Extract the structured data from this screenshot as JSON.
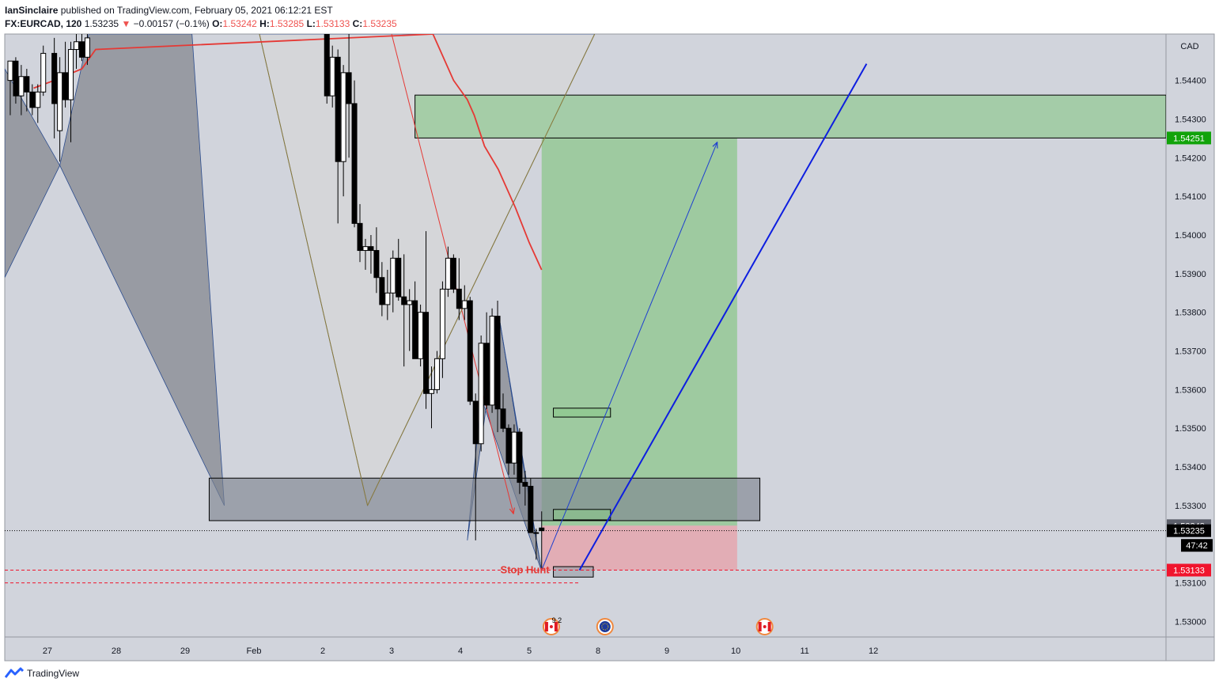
{
  "header": {
    "author": "IanSinclaire",
    "published_text": "published on TradingView.com, February 05, 2021 06:12:21 EST",
    "symbol": "FX:EURCAD, 120",
    "last": "1.53235",
    "change_arrow": "▼",
    "change": "−0.00157 (−0.1%)",
    "o_label": "O:",
    "o_value": "1.53242",
    "h_label": "H:",
    "h_value": "1.53285",
    "l_label": "L:",
    "l_value": "1.53133",
    "c_label": "C:",
    "c_value": "1.53235"
  },
  "footer": {
    "brand": "TradingView",
    "logo_icon": "tradingview-logo-icon"
  },
  "colors": {
    "background": "#d1d4dc",
    "bull": "#ffffff",
    "bear": "#000000",
    "target_zone": "#8cc78c",
    "stop_zone": "#f08c96",
    "ema": "#e53935",
    "trend_line": "#0d1ee0",
    "price_tag_green": "#11a30a",
    "price_tag_red": "#f0142d"
  },
  "chart_data": {
    "type": "candlestick",
    "symbol": "EURCAD",
    "interval": "120",
    "currency_label": "CAD",
    "ylim": [
      1.5296,
      1.5452
    ],
    "xlim": [
      26.38,
      43.25
    ],
    "x_ticks": [
      {
        "label": "27",
        "x": 27
      },
      {
        "label": "28",
        "x": 28
      },
      {
        "label": "29",
        "x": 29
      },
      {
        "label": "Feb",
        "x": 30
      },
      {
        "label": "2",
        "x": 31
      },
      {
        "label": "3",
        "x": 32
      },
      {
        "label": "4",
        "x": 33
      },
      {
        "label": "5",
        "x": 34
      },
      {
        "label": "8",
        "x": 35
      },
      {
        "label": "9",
        "x": 36
      },
      {
        "label": "10",
        "x": 37
      },
      {
        "label": "11",
        "x": 38
      },
      {
        "label": "12",
        "x": 39
      }
    ],
    "y_ticks": [
      "1.54400",
      "1.54300",
      "1.54200",
      "1.54100",
      "1.54000",
      "1.53900",
      "1.53800",
      "1.53700",
      "1.53600",
      "1.53500",
      "1.53400",
      "1.53300",
      "1.53100",
      "1.53000"
    ],
    "price_tags": [
      {
        "label": "1.54251",
        "price": 1.54251,
        "style": "green"
      },
      {
        "label": "1.53248",
        "price": 1.53248,
        "style": "grey"
      },
      {
        "label": "1.53235",
        "price": 1.53235,
        "style": "black"
      },
      {
        "label": "47:42",
        "price": 1.53197,
        "style": "black"
      },
      {
        "label": "1.53133",
        "price": 1.53133,
        "style": "red"
      }
    ],
    "annotation": "Stop Hunt",
    "event_marker_text": "9 2",
    "event_icons": [
      "canada-flag-icon",
      "euro-flag-icon",
      "canada-flag-icon"
    ],
    "candles": [
      {
        "x": 26.46,
        "o": 1.544,
        "h": 1.5445,
        "l": 1.5431,
        "c": 1.5445
      },
      {
        "x": 26.54,
        "o": 1.5445,
        "h": 1.5446,
        "l": 1.5434,
        "c": 1.5436
      },
      {
        "x": 26.62,
        "o": 1.5436,
        "h": 1.5444,
        "l": 1.5431,
        "c": 1.5441
      },
      {
        "x": 26.7,
        "o": 1.5441,
        "h": 1.5443,
        "l": 1.5432,
        "c": 1.5437
      },
      {
        "x": 26.78,
        "o": 1.5437,
        "h": 1.5439,
        "l": 1.5431,
        "c": 1.5433
      },
      {
        "x": 26.86,
        "o": 1.5433,
        "h": 1.5439,
        "l": 1.5429,
        "c": 1.5437
      },
      {
        "x": 26.94,
        "o": 1.5437,
        "h": 1.5449,
        "l": 1.5436,
        "c": 1.5447
      },
      {
        "x": 27.1,
        "o": 1.5447,
        "h": 1.5451,
        "l": 1.5425,
        "c": 1.5434
      },
      {
        "x": 27.18,
        "o": 1.5427,
        "h": 1.5446,
        "l": 1.5419,
        "c": 1.5442
      },
      {
        "x": 27.26,
        "o": 1.5442,
        "h": 1.545,
        "l": 1.5433,
        "c": 1.5435
      },
      {
        "x": 27.34,
        "o": 1.5435,
        "h": 1.545,
        "l": 1.5424,
        "c": 1.5448
      },
      {
        "x": 27.42,
        "o": 1.5448,
        "h": 1.5452,
        "l": 1.5443,
        "c": 1.545
      },
      {
        "x": 27.5,
        "o": 1.545,
        "h": 1.5452,
        "l": 1.5445,
        "c": 1.5446
      },
      {
        "x": 27.58,
        "o": 1.5446,
        "h": 1.5452,
        "l": 1.5444,
        "c": 1.5451
      },
      {
        "x": 31.06,
        "o": 1.5452,
        "h": 1.5452,
        "l": 1.5434,
        "c": 1.5436
      },
      {
        "x": 31.14,
        "o": 1.5436,
        "h": 1.5449,
        "l": 1.5433,
        "c": 1.5446
      },
      {
        "x": 31.22,
        "o": 1.5446,
        "h": 1.5448,
        "l": 1.5403,
        "c": 1.5419
      },
      {
        "x": 31.3,
        "o": 1.5419,
        "h": 1.5444,
        "l": 1.541,
        "c": 1.5442
      },
      {
        "x": 31.38,
        "o": 1.5442,
        "h": 1.5452,
        "l": 1.542,
        "c": 1.5434
      },
      {
        "x": 31.46,
        "o": 1.5434,
        "h": 1.544,
        "l": 1.5402,
        "c": 1.5403
      },
      {
        "x": 31.54,
        "o": 1.5403,
        "h": 1.5408,
        "l": 1.5393,
        "c": 1.5396
      },
      {
        "x": 31.62,
        "o": 1.5396,
        "h": 1.5399,
        "l": 1.5391,
        "c": 1.5397
      },
      {
        "x": 31.7,
        "o": 1.5397,
        "h": 1.54,
        "l": 1.539,
        "c": 1.5396
      },
      {
        "x": 31.78,
        "o": 1.5396,
        "h": 1.5402,
        "l": 1.5385,
        "c": 1.5389
      },
      {
        "x": 31.86,
        "o": 1.5389,
        "h": 1.5393,
        "l": 1.5379,
        "c": 1.5382
      },
      {
        "x": 31.94,
        "o": 1.5382,
        "h": 1.5391,
        "l": 1.5378,
        "c": 1.5385
      },
      {
        "x": 32.02,
        "o": 1.5385,
        "h": 1.5396,
        "l": 1.538,
        "c": 1.5394
      },
      {
        "x": 32.1,
        "o": 1.5394,
        "h": 1.5399,
        "l": 1.5383,
        "c": 1.5384
      },
      {
        "x": 32.18,
        "o": 1.5384,
        "h": 1.5395,
        "l": 1.5366,
        "c": 1.5382
      },
      {
        "x": 32.26,
        "o": 1.5382,
        "h": 1.5386,
        "l": 1.537,
        "c": 1.5383
      },
      {
        "x": 32.34,
        "o": 1.5383,
        "h": 1.5388,
        "l": 1.5368,
        "c": 1.5368
      },
      {
        "x": 32.42,
        "o": 1.5368,
        "h": 1.5382,
        "l": 1.5366,
        "c": 1.538
      },
      {
        "x": 32.5,
        "o": 1.538,
        "h": 1.5401,
        "l": 1.5355,
        "c": 1.5359
      },
      {
        "x": 32.58,
        "o": 1.5359,
        "h": 1.5366,
        "l": 1.535,
        "c": 1.536
      },
      {
        "x": 32.66,
        "o": 1.536,
        "h": 1.537,
        "l": 1.5359,
        "c": 1.5368
      },
      {
        "x": 32.74,
        "o": 1.5368,
        "h": 1.5388,
        "l": 1.5363,
        "c": 1.5386
      },
      {
        "x": 32.82,
        "o": 1.5386,
        "h": 1.5397,
        "l": 1.5384,
        "c": 1.5394
      },
      {
        "x": 32.9,
        "o": 1.5394,
        "h": 1.5395,
        "l": 1.5385,
        "c": 1.5386
      },
      {
        "x": 32.98,
        "o": 1.5386,
        "h": 1.5394,
        "l": 1.5378,
        "c": 1.5381
      },
      {
        "x": 33.06,
        "o": 1.5381,
        "h": 1.5387,
        "l": 1.5378,
        "c": 1.5383
      },
      {
        "x": 33.14,
        "o": 1.5383,
        "h": 1.5384,
        "l": 1.5356,
        "c": 1.5357
      },
      {
        "x": 33.22,
        "o": 1.5357,
        "h": 1.5359,
        "l": 1.5321,
        "c": 1.5346
      },
      {
        "x": 33.3,
        "o": 1.5346,
        "h": 1.5374,
        "l": 1.5344,
        "c": 1.5372
      },
      {
        "x": 33.38,
        "o": 1.5372,
        "h": 1.538,
        "l": 1.5355,
        "c": 1.5356
      },
      {
        "x": 33.46,
        "o": 1.5356,
        "h": 1.5381,
        "l": 1.5354,
        "c": 1.5379
      },
      {
        "x": 33.54,
        "o": 1.5379,
        "h": 1.5383,
        "l": 1.5349,
        "c": 1.5355
      },
      {
        "x": 33.62,
        "o": 1.5355,
        "h": 1.5359,
        "l": 1.5349,
        "c": 1.535
      },
      {
        "x": 33.7,
        "o": 1.535,
        "h": 1.5351,
        "l": 1.5338,
        "c": 1.5341
      },
      {
        "x": 33.78,
        "o": 1.5341,
        "h": 1.5351,
        "l": 1.5338,
        "c": 1.5349
      },
      {
        "x": 33.86,
        "o": 1.5349,
        "h": 1.535,
        "l": 1.5333,
        "c": 1.5336
      },
      {
        "x": 33.94,
        "o": 1.5336,
        "h": 1.5339,
        "l": 1.533,
        "c": 1.5335
      },
      {
        "x": 34.02,
        "o": 1.5335,
        "h": 1.5337,
        "l": 1.5323,
        "c": 1.5323
      },
      {
        "x": 34.1,
        "o": 1.5323,
        "h": 1.5324,
        "l": 1.5316,
        "c": 1.5323
      },
      {
        "x": 34.18,
        "o": 1.53242,
        "h": 1.53285,
        "l": 1.53133,
        "c": 1.53235
      }
    ],
    "ema": [
      {
        "x": 26.8,
        "y": 1.5438
      },
      {
        "x": 27.1,
        "y": 1.544
      },
      {
        "x": 27.5,
        "y": 1.5443
      },
      {
        "x": 27.7,
        "y": 1.5448
      },
      {
        "x": 32.6,
        "y": 1.5452
      },
      {
        "x": 32.9,
        "y": 1.544
      },
      {
        "x": 33.1,
        "y": 1.5435
      },
      {
        "x": 33.2,
        "y": 1.5431
      },
      {
        "x": 33.35,
        "y": 1.5423
      },
      {
        "x": 33.55,
        "y": 1.5417
      },
      {
        "x": 33.8,
        "y": 1.5407
      },
      {
        "x": 34.0,
        "y": 1.5398
      },
      {
        "x": 34.18,
        "y": 1.5391
      }
    ],
    "long_position": {
      "x_start": 34.18,
      "x_end": 37.02,
      "entry": 1.53248,
      "target": 1.54251,
      "stop": 1.53133
    },
    "zones": [
      {
        "name": "upper-green-zone",
        "x1": 32.34,
        "x2": 43.25,
        "y1": 1.54251,
        "y2": 1.54362,
        "fill": "#8cc78c"
      },
      {
        "name": "support-zone",
        "x1": 29.35,
        "x2": 37.35,
        "y1": 1.53261,
        "y2": 1.53371,
        "fill": "#808591"
      },
      {
        "name": "small-zone-upper",
        "x1": 34.35,
        "x2": 35.18,
        "y1": 1.53529,
        "y2": 1.53552,
        "fill": "#8cc78c"
      },
      {
        "name": "small-zone-lower",
        "x1": 34.35,
        "x2": 35.18,
        "y1": 1.53263,
        "y2": 1.5329,
        "fill": "#8cc78c"
      },
      {
        "name": "stop-hunt-box",
        "x1": 34.35,
        "x2": 34.93,
        "y1": 1.53115,
        "y2": 1.53142,
        "fill": "#9a9ea8"
      }
    ],
    "harmonic_shapes": [
      {
        "name": "harmonic-left",
        "fill": "#8e9099",
        "points": [
          [
            26.38,
            1.5389
          ],
          [
            27.18,
            1.5418
          ],
          [
            26.38,
            1.5443
          ]
        ]
      },
      {
        "name": "harmonic-mid-left",
        "fill": "#8e9099",
        "points": [
          [
            27.18,
            1.5418
          ],
          [
            29.57,
            1.533
          ],
          [
            29.1,
            1.5452
          ],
          [
            27.6,
            1.5452
          ]
        ]
      },
      {
        "name": "harmonic-mid",
        "fill": "#d6d6d8",
        "points": [
          [
            30.08,
            1.5452
          ],
          [
            31.65,
            1.533
          ],
          [
            34.95,
            1.5452
          ]
        ]
      },
      {
        "name": "harmonic-right-a",
        "fill": "#8e9099",
        "points": [
          [
            33.3,
            1.5358
          ],
          [
            33.1,
            1.5321
          ],
          [
            33.56,
            1.5379
          ],
          [
            33.86,
            1.5346
          ],
          [
            34.18,
            1.5313
          ]
        ]
      },
      {
        "name": "harmonic-right-b",
        "fill": "#8e9099",
        "points": [
          [
            33.56,
            1.5379
          ],
          [
            34.18,
            1.5313
          ],
          [
            33.86,
            1.5346
          ]
        ]
      }
    ],
    "lines": [
      {
        "name": "red-projection-line",
        "color": "#e53935",
        "width": 1,
        "arrow": true,
        "points": [
          [
            32.0,
            1.5452
          ],
          [
            33.77,
            1.53279
          ]
        ]
      },
      {
        "name": "blue-projection-line",
        "color": "#1e3fd0",
        "width": 1,
        "arrow": true,
        "points": [
          [
            34.18,
            1.53133
          ],
          [
            36.73,
            1.5424
          ]
        ]
      },
      {
        "name": "blue-trend-line",
        "color": "#0d1ee0",
        "width": 2,
        "arrow": false,
        "points": [
          [
            34.73,
            1.53133
          ],
          [
            38.9,
            1.54443
          ]
        ]
      },
      {
        "name": "mid-left-edge",
        "color": "#8a7a3a",
        "width": 1,
        "arrow": false,
        "points": [
          [
            30.08,
            1.5452
          ],
          [
            31.65,
            1.533
          ]
        ]
      },
      {
        "name": "mid-right-edge",
        "color": "#8a7a3a",
        "width": 1,
        "arrow": false,
        "points": [
          [
            31.65,
            1.533
          ],
          [
            34.95,
            1.5452
          ]
        ]
      }
    ]
  }
}
